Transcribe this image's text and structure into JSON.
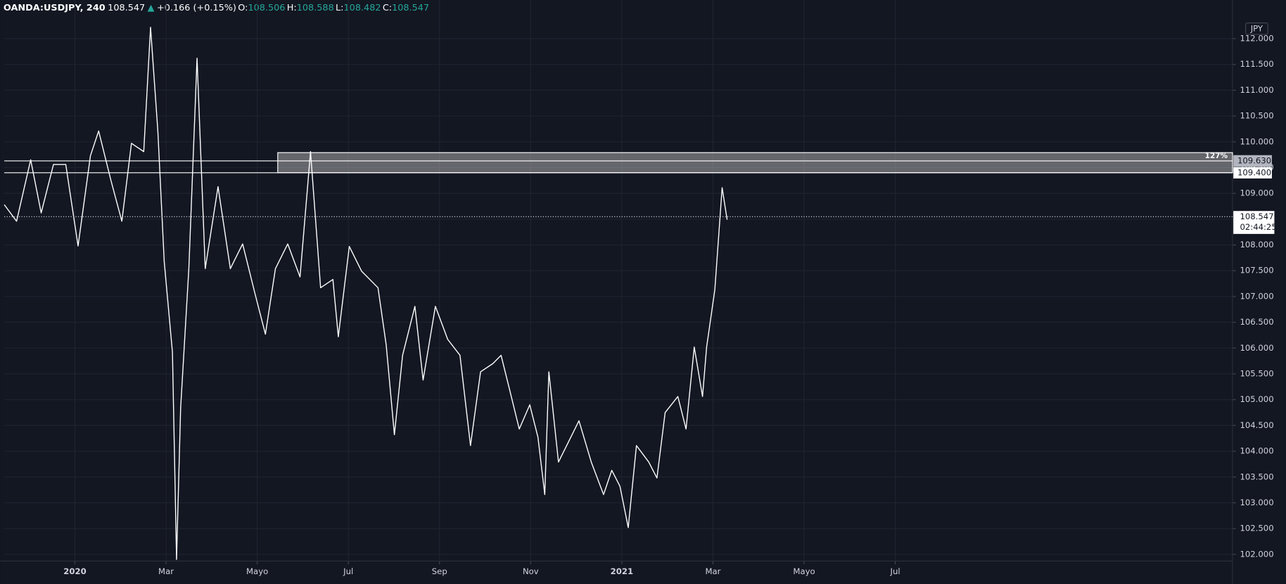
{
  "chart_data": {
    "type": "line",
    "legend": {
      "symbol": "OANDA:USDJPY, 240",
      "arrow": "▲",
      "change": "+0.166 (+0.15%)",
      "ohlc": [
        {
          "key": "O:",
          "value": "108.506"
        },
        {
          "key": "H:",
          "value": "108.588"
        },
        {
          "key": "L:",
          "value": "108.482"
        },
        {
          "key": "C:",
          "value": "108.547"
        }
      ]
    },
    "currency": "JPY",
    "color": "#ffffff",
    "x": [
      -1.55,
      -1.28,
      -0.97,
      -0.74,
      -0.47,
      -0.2,
      0.07,
      0.34,
      0.52,
      0.79,
      1.03,
      1.24,
      1.51,
      1.66,
      1.82,
      1.96,
      2.14,
      2.23,
      2.32,
      2.5,
      2.68,
      2.86,
      3.14,
      3.41,
      3.68,
      3.95,
      4.18,
      4.4,
      4.67,
      4.94,
      5.17,
      5.39,
      5.66,
      5.78,
      6.02,
      6.29,
      6.65,
      6.83,
      7.01,
      7.19,
      7.46,
      7.64,
      7.91,
      8.18,
      8.45,
      8.68,
      8.9,
      9.17,
      9.35,
      9.53,
      9.75,
      9.98,
      10.16,
      10.31,
      10.4,
      10.61,
      10.79,
      11.06,
      11.33,
      11.6,
      11.78,
      11.96,
      12.14,
      12.32,
      12.59,
      12.77,
      12.95,
      13.23,
      13.41,
      13.59,
      13.77,
      13.86,
      14.04,
      14.13,
      14.2,
      14.31
    ],
    "values": [
      108.78,
      108.46,
      109.65,
      108.62,
      109.56,
      109.56,
      107.98,
      109.73,
      110.21,
      109.25,
      108.46,
      109.97,
      109.81,
      112.22,
      110.21,
      107.67,
      105.92,
      101.9,
      104.84,
      107.54,
      111.62,
      107.54,
      109.13,
      107.54,
      108.02,
      107.06,
      106.27,
      107.54,
      108.02,
      107.38,
      109.81,
      107.17,
      107.33,
      106.22,
      107.97,
      107.49,
      107.17,
      106.06,
      104.32,
      105.86,
      106.81,
      105.38,
      106.81,
      106.17,
      105.86,
      104.11,
      105.54,
      105.7,
      105.86,
      105.22,
      104.43,
      104.9,
      104.27,
      103.16,
      105.54,
      103.79,
      104.11,
      104.59,
      103.79,
      103.16,
      103.63,
      103.32,
      102.52,
      104.11,
      103.79,
      103.48,
      104.75,
      105.06,
      104.43,
      106.02,
      105.06,
      106.02,
      107.13,
      108.24,
      109.11,
      108.49
    ],
    "xlim": [
      -1.55,
      25.4
    ],
    "xticks": [
      {
        "value": 0,
        "label": "2020"
      },
      {
        "value": 2,
        "label": "Mar"
      },
      {
        "value": 4,
        "label": "Mayo"
      },
      {
        "value": 6,
        "label": "Jul"
      },
      {
        "value": 8,
        "label": "Sep"
      },
      {
        "value": 10,
        "label": "Nov"
      },
      {
        "value": 12,
        "label": "2021"
      },
      {
        "value": 14,
        "label": "Mar"
      },
      {
        "value": 16,
        "label": "Mayo"
      },
      {
        "value": 18,
        "label": "Jul"
      }
    ],
    "ylim": [
      101.87,
      112.4
    ],
    "yticks": [
      {
        "value": 102,
        "label": "102.000"
      },
      {
        "value": 102.5,
        "label": "102.500"
      },
      {
        "value": 103,
        "label": "103.000"
      },
      {
        "value": 103.5,
        "label": "103.500"
      },
      {
        "value": 104,
        "label": "104.000"
      },
      {
        "value": 104.5,
        "label": "104.500"
      },
      {
        "value": 105,
        "label": "105.000"
      },
      {
        "value": 105.5,
        "label": "105.500"
      },
      {
        "value": 106,
        "label": "106.000"
      },
      {
        "value": 106.5,
        "label": "106.500"
      },
      {
        "value": 107,
        "label": "107.000"
      },
      {
        "value": 107.5,
        "label": "107.500"
      },
      {
        "value": 108,
        "label": "108.000"
      },
      {
        "value": 108.5,
        "label": "108.500"
      },
      {
        "value": 109,
        "label": "109.000"
      },
      {
        "value": 109.5,
        "label": "109.500"
      },
      {
        "value": 110,
        "label": "110.000"
      },
      {
        "value": 110.5,
        "label": "110.500"
      },
      {
        "value": 111,
        "label": "111.000"
      },
      {
        "value": 111.5,
        "label": "111.500"
      },
      {
        "value": 112,
        "label": "112.000"
      }
    ],
    "grid": true,
    "zone": {
      "x_start": 4.45,
      "top": 109.79,
      "label": "127%",
      "levels": [
        {
          "value": 109.63,
          "label": "109.630"
        },
        {
          "value": 109.4,
          "label": "109.400"
        }
      ]
    },
    "last": {
      "price": 108.547,
      "countdown": "02:44:25"
    }
  }
}
